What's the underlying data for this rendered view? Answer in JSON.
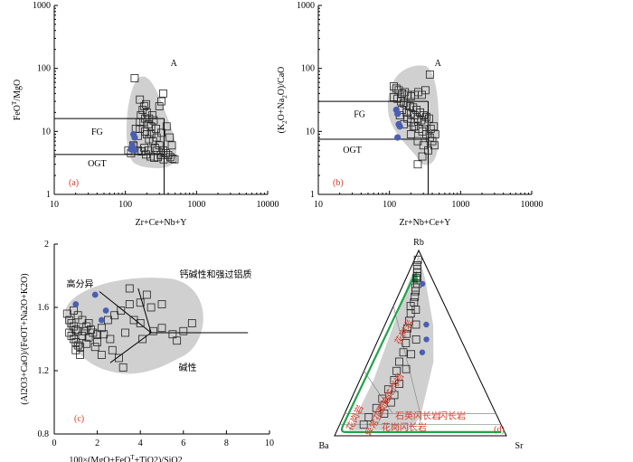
{
  "chart_data": [
    {
      "id": "a",
      "type": "scatter",
      "xlabel_main": "Zr+Ce+Nb+Y",
      "ylabel_sup": "T",
      "ylabel_pre": "FeO",
      "ylabel_post": "/MgO",
      "xlim": [
        10,
        10000
      ],
      "ylim": [
        1,
        1000
      ],
      "xticks": [
        "10",
        "100",
        "1000",
        "10000"
      ],
      "yticks": [
        "1",
        "10",
        "100",
        "1000"
      ],
      "panel_label": "(a)",
      "regions": [
        "A",
        "FG",
        "OGT"
      ],
      "squares": [
        [
          135,
          70
        ],
        [
          160,
          32
        ],
        [
          175,
          22
        ],
        [
          185,
          25
        ],
        [
          195,
          27
        ],
        [
          180,
          14
        ],
        [
          215,
          16
        ],
        [
          230,
          12
        ],
        [
          250,
          15
        ],
        [
          270,
          11
        ],
        [
          300,
          25
        ],
        [
          320,
          30
        ],
        [
          340,
          40
        ],
        [
          380,
          12
        ],
        [
          420,
          8
        ],
        [
          450,
          6
        ],
        [
          200,
          9
        ],
        [
          215,
          7.5
        ],
        [
          245,
          7
        ],
        [
          160,
          14
        ],
        [
          140,
          11
        ],
        [
          150,
          8.5
        ],
        [
          130,
          6
        ],
        [
          150,
          5
        ],
        [
          170,
          4.8
        ],
        [
          195,
          4.3
        ],
        [
          225,
          4
        ],
        [
          255,
          3.8
        ],
        [
          285,
          3.9
        ],
        [
          315,
          4.2
        ],
        [
          345,
          3.6
        ],
        [
          185,
          5.5
        ],
        [
          210,
          5
        ],
        [
          260,
          5.5
        ],
        [
          300,
          6
        ],
        [
          340,
          5
        ],
        [
          370,
          4.5
        ],
        [
          400,
          4.2
        ],
        [
          430,
          3.9
        ],
        [
          460,
          3.7
        ],
        [
          490,
          3.6
        ],
        [
          190,
          10
        ],
        [
          230,
          9
        ],
        [
          275,
          8
        ],
        [
          320,
          9.5
        ],
        [
          130,
          5.8
        ],
        [
          120,
          4.5
        ],
        [
          110,
          5
        ],
        [
          160,
          11
        ],
        [
          240,
          18
        ],
        [
          200,
          20
        ],
        [
          165,
          18
        ],
        [
          190,
          16
        ],
        [
          210,
          13
        ],
        [
          280,
          5
        ]
      ],
      "dots": [
        [
          130,
          9
        ],
        [
          135,
          8
        ],
        [
          125,
          6
        ],
        [
          120,
          5.2
        ],
        [
          135,
          5
        ]
      ]
    },
    {
      "id": "b",
      "type": "scatter",
      "xlabel_main": "Zr+Nb+Ce+Y",
      "ylabel": "(K2O+Na2O)/CaO",
      "xlim": [
        10,
        10000
      ],
      "ylim": [
        1,
        1000
      ],
      "xticks": [
        "10",
        "100",
        "1000",
        "10000"
      ],
      "yticks": [
        "1",
        "10",
        "100",
        "1000"
      ],
      "panel_label": "(b)",
      "regions": [
        "A",
        "FG",
        "OGT"
      ],
      "squares": [
        [
          115,
          52
        ],
        [
          125,
          48
        ],
        [
          135,
          45
        ],
        [
          150,
          40
        ],
        [
          165,
          42
        ],
        [
          180,
          38
        ],
        [
          200,
          36
        ],
        [
          225,
          38
        ],
        [
          255,
          42
        ],
        [
          285,
          38
        ],
        [
          320,
          45
        ],
        [
          370,
          80
        ],
        [
          115,
          35
        ],
        [
          130,
          33
        ],
        [
          145,
          30
        ],
        [
          160,
          28
        ],
        [
          175,
          26
        ],
        [
          195,
          25
        ],
        [
          215,
          24
        ],
        [
          240,
          22
        ],
        [
          270,
          20
        ],
        [
          300,
          18
        ],
        [
          330,
          17
        ],
        [
          360,
          16
        ],
        [
          150,
          22
        ],
        [
          175,
          20
        ],
        [
          200,
          19
        ],
        [
          225,
          18
        ],
        [
          250,
          16
        ],
        [
          280,
          15
        ],
        [
          310,
          14
        ],
        [
          140,
          18
        ],
        [
          200,
          14
        ],
        [
          230,
          12
        ],
        [
          260,
          11
        ],
        [
          290,
          10
        ],
        [
          330,
          9
        ],
        [
          370,
          8
        ],
        [
          400,
          7
        ],
        [
          430,
          6
        ],
        [
          200,
          9
        ],
        [
          250,
          7
        ],
        [
          300,
          6
        ],
        [
          350,
          5
        ],
        [
          290,
          4
        ],
        [
          250,
          3
        ],
        [
          220,
          12
        ],
        [
          180,
          16
        ],
        [
          160,
          13
        ],
        [
          380,
          11
        ],
        [
          420,
          12
        ],
        [
          440,
          9
        ]
      ],
      "dots": [
        [
          125,
          22
        ],
        [
          130,
          19
        ],
        [
          135,
          13
        ],
        [
          140,
          12
        ],
        [
          130,
          8
        ]
      ]
    },
    {
      "id": "c",
      "type": "scatter",
      "xlabel_main": "100×(MgO+FeO",
      "xlabel_sup": "T",
      "xlabel_post": "+TiO2)/SiO2",
      "ylabel": "(Al2O3+CaO)/(FeOT+Na2O+K2O)",
      "xlim": [
        0,
        10
      ],
      "ylim": [
        0.8,
        2.0
      ],
      "xticks": [
        "0",
        "2",
        "4",
        "6",
        "8",
        "10"
      ],
      "yticks": [
        "0.8",
        "1.2",
        "1.6",
        "2"
      ],
      "panel_label": "(c)",
      "regions": [
        "高分异",
        "钙碱性和强过铝质",
        "碱性"
      ],
      "squares": [
        [
          0.6,
          1.56
        ],
        [
          0.7,
          1.52
        ],
        [
          0.8,
          1.5
        ],
        [
          0.9,
          1.48
        ],
        [
          1.0,
          1.46
        ],
        [
          1.1,
          1.45
        ],
        [
          0.7,
          1.44
        ],
        [
          0.8,
          1.42
        ],
        [
          0.9,
          1.4
        ],
        [
          1.0,
          1.38
        ],
        [
          1.1,
          1.36
        ],
        [
          1.2,
          1.35
        ],
        [
          1.3,
          1.42
        ],
        [
          1.4,
          1.45
        ],
        [
          1.5,
          1.48
        ],
        [
          1.6,
          1.5
        ],
        [
          1.7,
          1.46
        ],
        [
          1.8,
          1.44
        ],
        [
          2.0,
          1.43
        ],
        [
          2.2,
          1.47
        ],
        [
          2.5,
          1.52
        ],
        [
          2.8,
          1.55
        ],
        [
          3.1,
          1.58
        ],
        [
          3.5,
          1.62
        ],
        [
          4.0,
          1.63
        ],
        [
          4.5,
          1.6
        ],
        [
          5.0,
          1.62
        ],
        [
          3.5,
          1.72
        ],
        [
          4.3,
          1.68
        ],
        [
          4.6,
          1.45
        ],
        [
          5.0,
          1.47
        ],
        [
          5.5,
          1.43
        ],
        [
          6.0,
          1.45
        ],
        [
          6.4,
          1.5
        ],
        [
          4.0,
          1.5
        ],
        [
          3.3,
          1.44
        ],
        [
          2.6,
          1.4
        ],
        [
          1.9,
          1.35
        ],
        [
          1.5,
          1.37
        ],
        [
          1.2,
          1.3
        ],
        [
          1.0,
          1.33
        ],
        [
          2.2,
          1.3
        ],
        [
          3.0,
          1.28
        ],
        [
          3.2,
          1.22
        ],
        [
          2.7,
          1.33
        ],
        [
          2.0,
          1.38
        ],
        [
          1.3,
          1.52
        ],
        [
          0.9,
          1.58
        ],
        [
          1.1,
          1.55
        ],
        [
          1.6,
          1.41
        ],
        [
          2.3,
          1.43
        ],
        [
          3.7,
          1.52
        ],
        [
          4.1,
          1.4
        ],
        [
          5.7,
          1.39
        ]
      ],
      "dots": [
        [
          1.0,
          1.62
        ],
        [
          1.9,
          1.68
        ],
        [
          2.4,
          1.58
        ],
        [
          2.2,
          1.52
        ]
      ]
    },
    {
      "id": "d",
      "type": "ternary",
      "vertices": [
        "Rb",
        "Ba",
        "Sr"
      ],
      "panel_label": "(d)",
      "regions": [
        "花岗岩",
        "正长花岗岩",
        "异常花岗岩",
        "石英闪长岩",
        "闪长岩",
        "花岗闪长岩",
        "花岗岩"
      ],
      "note": "squares given as barycentric [Rb,Ba,Sr]",
      "squares": [
        [
          0.95,
          0.03,
          0.02
        ],
        [
          0.92,
          0.05,
          0.03
        ],
        [
          0.9,
          0.06,
          0.04
        ],
        [
          0.88,
          0.07,
          0.05
        ],
        [
          0.85,
          0.09,
          0.06
        ],
        [
          0.82,
          0.1,
          0.08
        ],
        [
          0.78,
          0.13,
          0.09
        ],
        [
          0.75,
          0.15,
          0.1
        ],
        [
          0.72,
          0.17,
          0.11
        ],
        [
          0.7,
          0.2,
          0.1
        ],
        [
          0.66,
          0.22,
          0.12
        ],
        [
          0.62,
          0.25,
          0.13
        ],
        [
          0.58,
          0.28,
          0.14
        ],
        [
          0.55,
          0.3,
          0.15
        ],
        [
          0.5,
          0.33,
          0.17
        ],
        [
          0.45,
          0.37,
          0.18
        ],
        [
          0.4,
          0.42,
          0.18
        ],
        [
          0.35,
          0.46,
          0.19
        ],
        [
          0.3,
          0.5,
          0.2
        ],
        [
          0.25,
          0.56,
          0.19
        ],
        [
          0.2,
          0.62,
          0.18
        ],
        [
          0.15,
          0.68,
          0.17
        ],
        [
          0.1,
          0.75,
          0.15
        ],
        [
          0.06,
          0.8,
          0.14
        ],
        [
          0.68,
          0.18,
          0.14
        ],
        [
          0.6,
          0.22,
          0.18
        ],
        [
          0.52,
          0.26,
          0.22
        ],
        [
          0.44,
          0.33,
          0.23
        ],
        [
          0.36,
          0.4,
          0.24
        ],
        [
          0.28,
          0.48,
          0.24
        ],
        [
          0.22,
          0.54,
          0.24
        ],
        [
          0.18,
          0.58,
          0.24
        ],
        [
          0.12,
          0.65,
          0.23
        ],
        [
          0.8,
          0.12,
          0.08
        ],
        [
          0.86,
          0.08,
          0.06
        ]
      ],
      "dots": [
        [
          0.82,
          0.07,
          0.11
        ],
        [
          0.6,
          0.16,
          0.24
        ],
        [
          0.52,
          0.2,
          0.28
        ],
        [
          0.45,
          0.26,
          0.29
        ]
      ]
    }
  ]
}
